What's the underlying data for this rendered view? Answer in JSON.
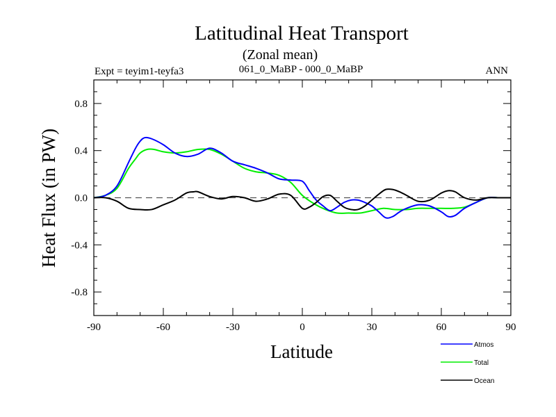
{
  "header": {
    "title": "Latitudinal Heat Transport",
    "subtitle": "(Zonal mean)",
    "expt_label": "Expt = teyim1-teyfa3",
    "period_label": "061_0_MaBP - 000_0_MaBP",
    "season_label": "ANN"
  },
  "chart_data": {
    "type": "line",
    "title": "Latitudinal Heat Transport",
    "subtitle": "(Zonal mean)",
    "xlabel": "Latitude",
    "ylabel": "Heat Flux (in PW)",
    "xlim": [
      -90,
      90
    ],
    "ylim": [
      -1.0,
      1.0
    ],
    "xticks": [
      -90,
      -60,
      -30,
      0,
      30,
      60,
      90
    ],
    "xtick_labels": [
      "-90",
      "-60",
      "-30",
      "0",
      "30",
      "60",
      "90"
    ],
    "yticks": [
      -0.8,
      -0.4,
      0.0,
      0.4,
      0.8
    ],
    "ytick_labels": [
      "-0.8",
      "-0.4",
      "0.0",
      "0.4",
      "0.8"
    ],
    "zero_line": "dashed",
    "grid": false,
    "legend_position": "bottom-right",
    "series": [
      {
        "name": "Atmos",
        "color": "#0000ff",
        "x": [
          -90,
          -85,
          -80,
          -75,
          -72,
          -70,
          -68,
          -65,
          -60,
          -55,
          -50,
          -45,
          -40,
          -35,
          -30,
          -25,
          -20,
          -15,
          -10,
          -5,
          0,
          3,
          6,
          9,
          12,
          15,
          18,
          21,
          24,
          27,
          30,
          33,
          36,
          39,
          42,
          45,
          50,
          55,
          60,
          63,
          66,
          70,
          75,
          80,
          85,
          90
        ],
        "y": [
          0.0,
          0.02,
          0.1,
          0.3,
          0.42,
          0.48,
          0.51,
          0.5,
          0.45,
          0.38,
          0.35,
          0.37,
          0.42,
          0.38,
          0.31,
          0.28,
          0.25,
          0.21,
          0.16,
          0.15,
          0.14,
          0.06,
          -0.02,
          -0.07,
          -0.11,
          -0.08,
          -0.04,
          -0.02,
          -0.02,
          -0.04,
          -0.07,
          -0.12,
          -0.17,
          -0.16,
          -0.12,
          -0.09,
          -0.06,
          -0.07,
          -0.12,
          -0.16,
          -0.15,
          -0.09,
          -0.04,
          0.0,
          0.0,
          0.0
        ]
      },
      {
        "name": "Total",
        "color": "#00ee00",
        "x": [
          -90,
          -85,
          -80,
          -75,
          -72,
          -70,
          -67,
          -64,
          -60,
          -55,
          -50,
          -45,
          -40,
          -35,
          -30,
          -25,
          -20,
          -15,
          -10,
          -5,
          0,
          5,
          10,
          15,
          20,
          25,
          30,
          35,
          40,
          45,
          50,
          55,
          60,
          65,
          70,
          75,
          80,
          85,
          90
        ],
        "y": [
          0.0,
          0.02,
          0.08,
          0.25,
          0.33,
          0.38,
          0.41,
          0.41,
          0.39,
          0.38,
          0.39,
          0.41,
          0.41,
          0.37,
          0.31,
          0.25,
          0.22,
          0.21,
          0.19,
          0.13,
          0.02,
          -0.05,
          -0.1,
          -0.13,
          -0.13,
          -0.13,
          -0.11,
          -0.09,
          -0.1,
          -0.1,
          -0.09,
          -0.09,
          -0.09,
          -0.09,
          -0.08,
          -0.04,
          0.0,
          0.0,
          0.0
        ]
      },
      {
        "name": "Ocean",
        "color": "#000000",
        "x": [
          -90,
          -85,
          -80,
          -75,
          -70,
          -65,
          -60,
          -55,
          -50,
          -47,
          -45,
          -40,
          -35,
          -30,
          -25,
          -20,
          -15,
          -10,
          -5,
          0,
          3,
          6,
          9,
          12,
          15,
          18,
          21,
          24,
          27,
          30,
          33,
          36,
          39,
          42,
          45,
          50,
          55,
          60,
          63,
          66,
          70,
          75,
          80,
          85,
          90
        ],
        "y": [
          0.0,
          0.0,
          -0.03,
          -0.09,
          -0.1,
          -0.1,
          -0.06,
          -0.02,
          0.04,
          0.05,
          0.05,
          0.01,
          -0.01,
          0.01,
          0.0,
          -0.03,
          -0.01,
          0.03,
          0.02,
          -0.09,
          -0.08,
          -0.04,
          0.01,
          0.02,
          -0.03,
          -0.08,
          -0.1,
          -0.1,
          -0.07,
          -0.02,
          0.03,
          0.07,
          0.07,
          0.05,
          0.02,
          -0.03,
          -0.02,
          0.04,
          0.06,
          0.05,
          0.0,
          -0.02,
          0.0,
          0.0,
          0.0
        ]
      }
    ]
  }
}
